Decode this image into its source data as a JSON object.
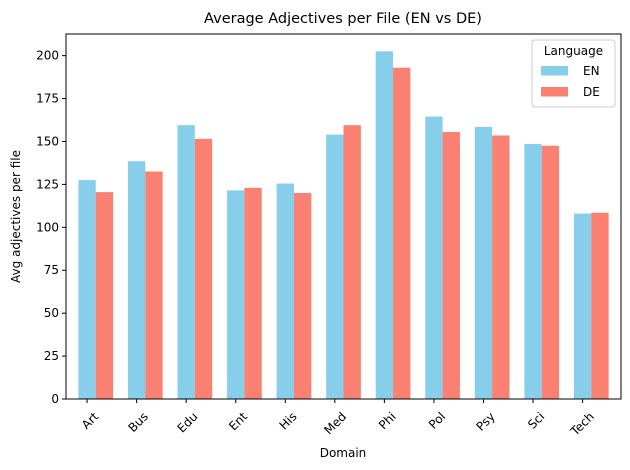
{
  "chart_data": {
    "type": "bar",
    "title": "Average Adjectives per File (EN vs DE)",
    "xlabel": "Domain",
    "ylabel": "Avg adjectives per file",
    "categories": [
      "Art",
      "Bus",
      "Edu",
      "Ent",
      "His",
      "Med",
      "Phi",
      "Pol",
      "Psy",
      "Sci",
      "Tech"
    ],
    "series": [
      {
        "name": "EN",
        "color": "#87CEEB",
        "values": [
          127.5,
          138.5,
          159.5,
          121.5,
          125.5,
          154,
          202.5,
          164.5,
          158.5,
          148.5,
          108
        ]
      },
      {
        "name": "DE",
        "color": "#FA8072",
        "values": [
          120.5,
          132.5,
          151.5,
          123,
          120,
          159.5,
          193,
          155.5,
          153.5,
          147.5,
          108.5
        ]
      }
    ],
    "ylim": [
      0,
      212.6
    ],
    "yticks": [
      0,
      25,
      50,
      75,
      100,
      125,
      150,
      175,
      200
    ],
    "grid": false,
    "legend": {
      "title": "Language",
      "position": "top-right"
    }
  }
}
